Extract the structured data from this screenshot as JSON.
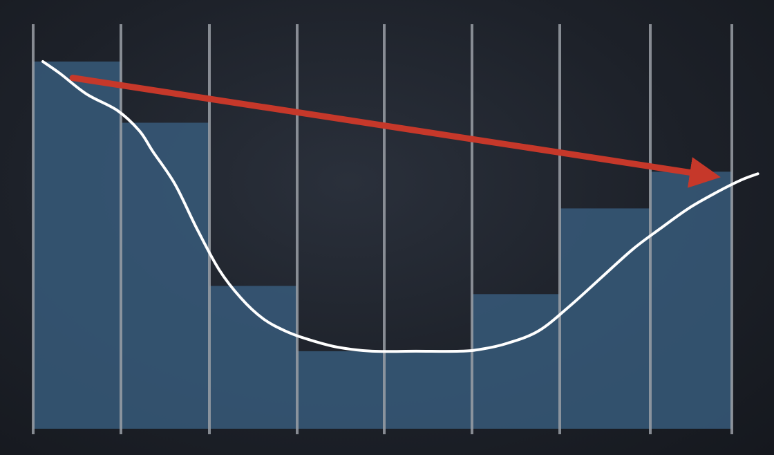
{
  "chart_data": {
    "type": "bar",
    "title": "",
    "xlabel": "",
    "ylabel": "",
    "grid": true,
    "ylim": [
      0,
      100
    ],
    "values": [
      90,
      75,
      35,
      19,
      19,
      33,
      54,
      63
    ],
    "line_series": [
      {
        "x": 0.0,
        "y": 90
      },
      {
        "x": 0.2,
        "y": 87
      },
      {
        "x": 0.5,
        "y": 82
      },
      {
        "x": 0.85,
        "y": 78
      },
      {
        "x": 1.1,
        "y": 73
      },
      {
        "x": 1.25,
        "y": 68
      },
      {
        "x": 1.5,
        "y": 60
      },
      {
        "x": 1.75,
        "y": 49
      },
      {
        "x": 2.0,
        "y": 39
      },
      {
        "x": 2.25,
        "y": 32
      },
      {
        "x": 2.5,
        "y": 27
      },
      {
        "x": 2.75,
        "y": 24
      },
      {
        "x": 3.0,
        "y": 22
      },
      {
        "x": 3.35,
        "y": 20
      },
      {
        "x": 3.75,
        "y": 19
      },
      {
        "x": 4.25,
        "y": 19
      },
      {
        "x": 4.75,
        "y": 19
      },
      {
        "x": 5.0,
        "y": 19.5
      },
      {
        "x": 5.3,
        "y": 21
      },
      {
        "x": 5.65,
        "y": 24
      },
      {
        "x": 6.0,
        "y": 30
      },
      {
        "x": 6.35,
        "y": 37
      },
      {
        "x": 6.7,
        "y": 44
      },
      {
        "x": 7.0,
        "y": 49
      },
      {
        "x": 7.35,
        "y": 54
      },
      {
        "x": 7.7,
        "y": 58
      },
      {
        "x": 8.0,
        "y": 61
      },
      {
        "x": 8.2,
        "y": 62.5
      }
    ],
    "trend_arrow": {
      "from": {
        "x": 0.45,
        "y": 86
      },
      "to": {
        "x": 7.75,
        "y": 62
      }
    },
    "colors": {
      "bar": "#375a7a",
      "gridline": "#9a9fa6",
      "line": "#ffffff",
      "arrow": "#c6382a"
    }
  }
}
